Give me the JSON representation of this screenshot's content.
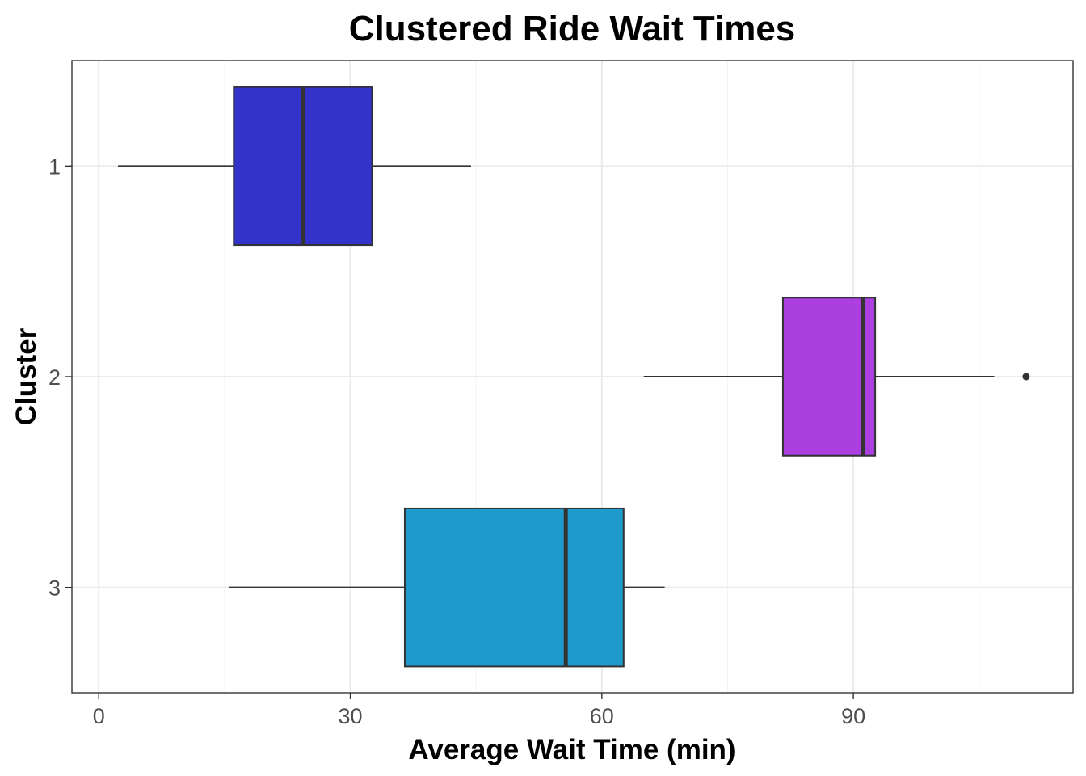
{
  "chart_data": {
    "type": "boxplot",
    "orientation": "horizontal",
    "title": "Clustered Ride Wait Times",
    "xlabel": "Average Wait Time (min)",
    "ylabel": "Cluster",
    "xlim": [
      -3.2,
      116.2
    ],
    "x_ticks": [
      0,
      30,
      60,
      90
    ],
    "x_tick_labels": [
      "0",
      "30",
      "60",
      "90"
    ],
    "categories": [
      "1",
      "2",
      "3"
    ],
    "grid": true,
    "legend": "none",
    "series": [
      {
        "category": "1",
        "whisker_low": 2.3,
        "q1": 16.1,
        "median": 24.4,
        "q3": 32.6,
        "whisker_high": 44.4,
        "outliers": [],
        "color": "#3333CC"
      },
      {
        "category": "2",
        "whisker_low": 65.0,
        "q1": 81.6,
        "median": 91.1,
        "q3": 92.6,
        "whisker_high": 106.8,
        "outliers": [
          110.6
        ],
        "color": "#AB3FE0"
      },
      {
        "category": "3",
        "whisker_low": 15.5,
        "q1": 36.5,
        "median": 55.7,
        "q3": 62.6,
        "whisker_high": 67.5,
        "outliers": [],
        "color": "#1E9BCC"
      }
    ]
  }
}
